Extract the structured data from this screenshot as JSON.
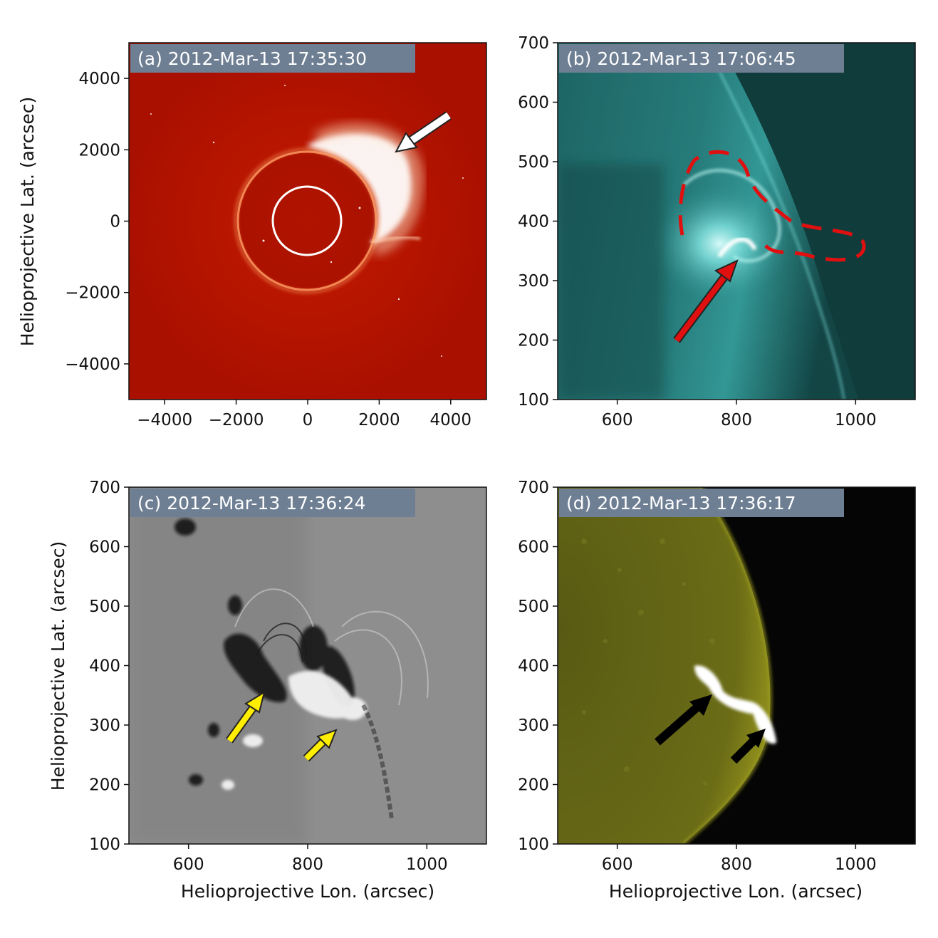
{
  "figure": {
    "panels": [
      {
        "id": "a",
        "title": "(a) 2012-Mar-13 17:35:30",
        "ylabel": "Helioprojective Lat. (arcsec)",
        "xlabel": "",
        "xticks": [
          "−4000",
          "−2000",
          "0",
          "2000",
          "4000"
        ],
        "yticks": [
          "4000",
          "2000",
          "0",
          "−2000",
          "−4000"
        ],
        "xlim": [
          -5000,
          5000
        ],
        "ylim": [
          -5000,
          5000
        ],
        "colors": {
          "background": "#b81400",
          "corona": "#ffffff",
          "occulter_ring": "#ffffff"
        },
        "annotations": [
          {
            "type": "arrow",
            "color": "#ffffff",
            "points_to": "CME front"
          }
        ]
      },
      {
        "id": "b",
        "title": "(b) 2012-Mar-13 17:06:45",
        "ylabel": "",
        "xlabel": "",
        "xticks": [
          "600",
          "800",
          "1000"
        ],
        "yticks": [
          "700",
          "600",
          "500",
          "400",
          "300",
          "200",
          "100"
        ],
        "xlim": [
          500,
          1100
        ],
        "ylim": [
          100,
          700
        ],
        "colors": {
          "disk": "#2d8f8d",
          "bright": "#aef6f4",
          "dashed_contour": "#e01010"
        },
        "annotations": [
          {
            "type": "arrow",
            "color": "#e01010"
          },
          {
            "type": "dashed-contour",
            "color": "#e01010"
          }
        ]
      },
      {
        "id": "c",
        "title": "(c) 2012-Mar-13 17:36:24",
        "ylabel": "Helioprojective Lat. (arcsec)",
        "xlabel": "Helioprojective Lon. (arcsec)",
        "xticks": [
          "600",
          "800",
          "1000"
        ],
        "yticks": [
          "700",
          "600",
          "500",
          "400",
          "300",
          "200",
          "100"
        ],
        "xlim": [
          500,
          1100
        ],
        "ylim": [
          100,
          700
        ],
        "colors": {
          "background": "#8c8c8c"
        },
        "annotations": [
          {
            "type": "arrow",
            "color": "#ffee00"
          },
          {
            "type": "arrow",
            "color": "#ffee00"
          }
        ]
      },
      {
        "id": "d",
        "title": "(d) 2012-Mar-13 17:36:17",
        "ylabel": "",
        "xlabel": "Helioprojective Lon. (arcsec)",
        "xticks": [
          "600",
          "800",
          "1000"
        ],
        "yticks": [
          "700",
          "600",
          "500",
          "400",
          "300",
          "200",
          "100"
        ],
        "xlim": [
          500,
          1100
        ],
        "ylim": [
          100,
          700
        ],
        "colors": {
          "disk": "#5a5a10",
          "limb_bright": "#8a8a18",
          "space": "#050505",
          "ribbon": "#ffffff"
        },
        "annotations": [
          {
            "type": "arrow",
            "color": "#000000"
          },
          {
            "type": "arrow",
            "color": "#000000"
          }
        ]
      }
    ]
  }
}
